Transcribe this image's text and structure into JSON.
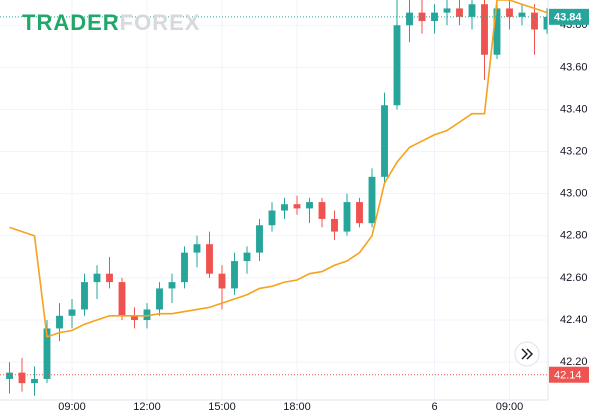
{
  "logo": {
    "part1": "TRADER",
    "part2": "FOREX"
  },
  "chart_data": {
    "type": "candlestick",
    "x": [
      0,
      1,
      2,
      3,
      4,
      5,
      6,
      7,
      8,
      9,
      10,
      11,
      12,
      13,
      14,
      15,
      16,
      17,
      18,
      19,
      20,
      21,
      22,
      23,
      24,
      25,
      26,
      27,
      28,
      29,
      30,
      31,
      32,
      33,
      34,
      35,
      36,
      37,
      38,
      39,
      40,
      41,
      42,
      43
    ],
    "open": [
      42.12,
      42.15,
      42.1,
      42.12,
      42.36,
      42.42,
      42.45,
      42.58,
      42.62,
      42.58,
      42.42,
      42.4,
      42.45,
      42.55,
      42.58,
      42.72,
      42.76,
      42.62,
      42.55,
      42.68,
      42.72,
      42.85,
      42.92,
      42.95,
      42.93,
      42.96,
      42.88,
      42.82,
      42.96,
      42.86,
      43.08,
      43.42,
      43.8,
      43.86,
      43.82,
      43.86,
      43.88,
      43.84,
      43.9,
      43.66,
      43.88,
      43.84,
      43.86,
      43.78
    ],
    "high": [
      42.2,
      42.22,
      42.18,
      42.4,
      42.48,
      42.5,
      42.62,
      42.66,
      42.7,
      42.6,
      42.46,
      42.48,
      42.58,
      42.62,
      42.75,
      42.8,
      42.82,
      42.66,
      42.72,
      42.75,
      42.88,
      42.96,
      42.98,
      42.99,
      42.98,
      42.98,
      42.92,
      43.0,
      42.98,
      43.12,
      43.48,
      43.92,
      43.92,
      43.92,
      43.9,
      43.92,
      43.92,
      43.92,
      43.92,
      43.92,
      43.92,
      43.9,
      43.9,
      43.88
    ],
    "low": [
      42.05,
      42.06,
      42.04,
      42.1,
      42.3,
      42.36,
      42.42,
      42.5,
      42.55,
      42.4,
      42.36,
      42.36,
      42.42,
      42.48,
      42.55,
      42.65,
      42.6,
      42.45,
      42.52,
      42.62,
      42.68,
      42.82,
      42.88,
      42.9,
      42.86,
      42.84,
      42.78,
      42.8,
      42.84,
      42.84,
      43.05,
      43.4,
      43.72,
      43.76,
      43.76,
      43.8,
      43.8,
      43.78,
      43.54,
      43.64,
      43.78,
      43.8,
      43.66,
      43.76
    ],
    "close": [
      42.15,
      42.1,
      42.12,
      42.36,
      42.42,
      42.45,
      42.58,
      42.62,
      42.58,
      42.42,
      42.4,
      42.45,
      42.55,
      42.58,
      42.72,
      42.76,
      42.62,
      42.55,
      42.68,
      42.72,
      42.85,
      42.92,
      42.95,
      42.93,
      42.96,
      42.88,
      42.82,
      42.96,
      42.86,
      43.08,
      43.42,
      43.8,
      43.86,
      43.82,
      43.86,
      43.88,
      43.84,
      43.9,
      43.66,
      43.88,
      43.84,
      43.86,
      43.78,
      43.84
    ],
    "up_color": "#26a69a",
    "down_color": "#ef5350",
    "line": {
      "color": "#f7a21b",
      "values": [
        42.84,
        42.82,
        42.8,
        42.32,
        42.34,
        42.35,
        42.38,
        42.4,
        42.42,
        42.42,
        42.42,
        42.42,
        42.43,
        42.43,
        42.44,
        42.45,
        42.46,
        42.48,
        42.5,
        42.52,
        42.55,
        42.56,
        42.58,
        42.59,
        42.62,
        42.63,
        42.66,
        42.68,
        42.72,
        42.8,
        43.05,
        43.15,
        43.22,
        43.25,
        43.28,
        43.3,
        43.34,
        43.38,
        43.38,
        43.92,
        43.92,
        43.9,
        43.88,
        43.86
      ]
    },
    "price_line": {
      "value": 42.14,
      "color": "#ef5350"
    },
    "xlim": [
      -0.76,
      43.08
    ],
    "ylim": [
      42.02,
      43.92
    ],
    "xticks": [
      {
        "value": 5,
        "label": "09:00"
      },
      {
        "value": 11,
        "label": "12:00"
      },
      {
        "value": 17,
        "label": "15:00"
      },
      {
        "value": 23,
        "label": "18:00"
      },
      {
        "value": 34,
        "label": "6"
      },
      {
        "value": 40,
        "label": "09:00"
      }
    ],
    "yticks": [
      {
        "value": 42.2,
        "label": "42.20"
      },
      {
        "value": 42.4,
        "label": "42.40"
      },
      {
        "value": 42.6,
        "label": "42.60"
      },
      {
        "value": 42.8,
        "label": "42.80"
      },
      {
        "value": 43,
        "label": "43.00"
      },
      {
        "value": 43.2,
        "label": "43.20"
      },
      {
        "value": 43.4,
        "label": "43.40"
      },
      {
        "value": 43.6,
        "label": "43.60"
      },
      {
        "value": 43.8,
        "label": "43.80"
      }
    ],
    "grid": true
  }
}
